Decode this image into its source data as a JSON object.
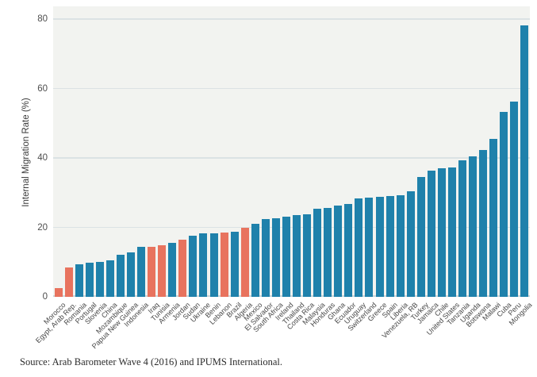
{
  "figure": {
    "source": "Source: Arab Barometer Wave 4 (2016) and IPUMS International."
  },
  "chart_data": {
    "type": "bar",
    "title": "",
    "xlabel": "",
    "ylabel": "Internal Migration Rate (%)",
    "ylim": [
      0,
      80
    ],
    "yticks": [
      0,
      20,
      40,
      60,
      80
    ],
    "grid": "horizontal gridlines on light gray plot background",
    "legend_position": "none",
    "colors": {
      "bar_default": "#1f81ab",
      "bar_highlight": "#e8735e",
      "plot_background": "#f2f3f0",
      "gridline": "#dbe2e4",
      "axis_line": "#ccd5d7"
    },
    "categories": [
      "Morocco",
      "Egypt, Arab Rep.",
      "Romania",
      "Portugal",
      "Slovenia",
      "China",
      "Mozambique",
      "Papua New Guinea",
      "Indonesia",
      "Iraq",
      "Tunisia",
      "Armenia",
      "Jordan",
      "Sudan",
      "Ukraine",
      "Benin",
      "Lebanon",
      "Brazil",
      "Algeria",
      "Mexico",
      "El Salvador",
      "South Africa",
      "Ireland",
      "Thailand",
      "Costa Rica",
      "Malaysia",
      "Honduras",
      "Ghana",
      "Ecuador",
      "Uruguay",
      "Switzerland",
      "Greece",
      "Spain",
      "Liberia",
      "Venezuela, RB",
      "Turkey",
      "Jamaica",
      "Chile",
      "United States",
      "Tanzania",
      "Uganda",
      "Botswana",
      "Malawi",
      "Cuba",
      "Peru",
      "Mongolia"
    ],
    "values": [
      2.5,
      8.5,
      9.3,
      9.8,
      10.0,
      10.5,
      12.1,
      12.7,
      14.3,
      14.5,
      14.8,
      15.6,
      16.4,
      17.5,
      18.2,
      18.4,
      18.5,
      18.7,
      20.0,
      21.1,
      22.5,
      22.7,
      23.2,
      23.5,
      23.8,
      25.3,
      25.7,
      26.4,
      26.7,
      28.3,
      28.5,
      28.7,
      29.0,
      29.3,
      30.3,
      34.5,
      36.3,
      37.1,
      37.3,
      39.3,
      40.5,
      42.3,
      45.5,
      53.2,
      56.2,
      78.2
    ],
    "highlighted_categories": [
      "Morocco",
      "Egypt, Arab Rep.",
      "Iraq",
      "Tunisia",
      "Jordan",
      "Lebanon",
      "Algeria"
    ]
  }
}
